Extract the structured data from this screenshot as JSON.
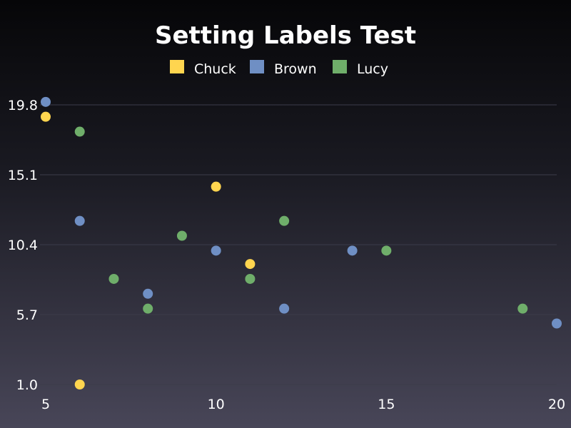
{
  "chart_data": {
    "type": "scatter",
    "title": "Setting Labels Test",
    "xlabel": "",
    "ylabel": "",
    "xlim": [
      5,
      20
    ],
    "ylim": [
      1.0,
      19.8
    ],
    "x_ticks": [
      "5",
      "10",
      "15",
      "20"
    ],
    "x_tick_values": [
      5,
      10,
      15,
      20
    ],
    "y_ticks": [
      "1.0",
      "5.7",
      "10.4",
      "15.1",
      "19.8"
    ],
    "y_tick_values": [
      1.0,
      5.7,
      10.4,
      15.1,
      19.8
    ],
    "grid": "horizontal",
    "legend_position": "top-center",
    "series": [
      {
        "name": "Chuck",
        "color": "#ffd54f",
        "points": [
          [
            5,
            19.0
          ],
          [
            6,
            1.0
          ],
          [
            10,
            14.3
          ],
          [
            11,
            9.1
          ]
        ]
      },
      {
        "name": "Brown",
        "color": "#6f8fc4",
        "points": [
          [
            5,
            20.0
          ],
          [
            6,
            12.0
          ],
          [
            8,
            7.1
          ],
          [
            10,
            10.0
          ],
          [
            12,
            6.1
          ],
          [
            14,
            10.0
          ],
          [
            20,
            5.1
          ]
        ]
      },
      {
        "name": "Lucy",
        "color": "#6fae6a",
        "points": [
          [
            6,
            18.0
          ],
          [
            7,
            8.1
          ],
          [
            8,
            6.1
          ],
          [
            9,
            11.0
          ],
          [
            11,
            8.1
          ],
          [
            12,
            12.0
          ],
          [
            15,
            10.0
          ],
          [
            19,
            6.1
          ]
        ]
      }
    ]
  }
}
